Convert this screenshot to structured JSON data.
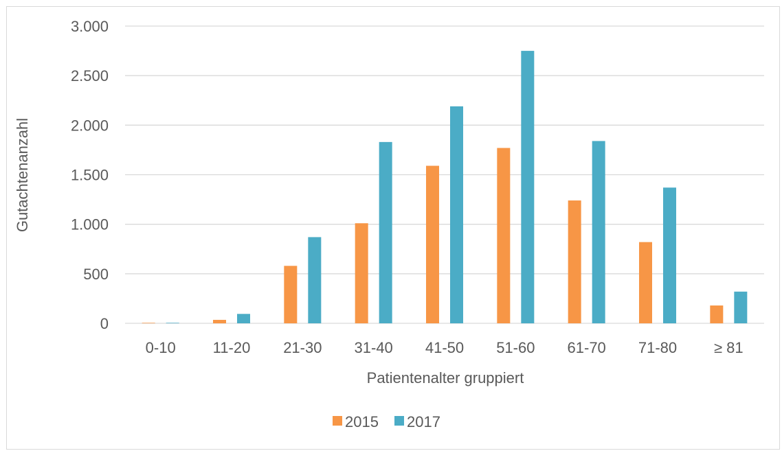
{
  "chart_data": {
    "type": "bar",
    "xlabel": "Patientenalter gruppiert",
    "ylabel": "Gutachtenanzahl",
    "categories": [
      "0-10",
      "11-20",
      "21-30",
      "31-40",
      "41-50",
      "51-60",
      "61-70",
      "71-80",
      "≥ 81"
    ],
    "series": [
      {
        "name": "2015",
        "values": [
          5,
          35,
          580,
          1010,
          1590,
          1770,
          1240,
          820,
          180
        ]
      },
      {
        "name": "2017",
        "values": [
          5,
          95,
          870,
          1830,
          2190,
          2750,
          1840,
          1370,
          320
        ]
      }
    ],
    "ylim": [
      0,
      3000
    ],
    "yticks": [
      0,
      500,
      1000,
      1500,
      2000,
      2500,
      3000
    ],
    "ytick_labels": [
      "0",
      "500",
      "1.000",
      "1.500",
      "2.000",
      "2.500",
      "3.000"
    ],
    "grid": true,
    "legend_position": "bottom",
    "colors": {
      "2015": "#f79646",
      "2017": "#4bacc6",
      "grid": "#d9d9d9",
      "text": "#595959"
    }
  }
}
